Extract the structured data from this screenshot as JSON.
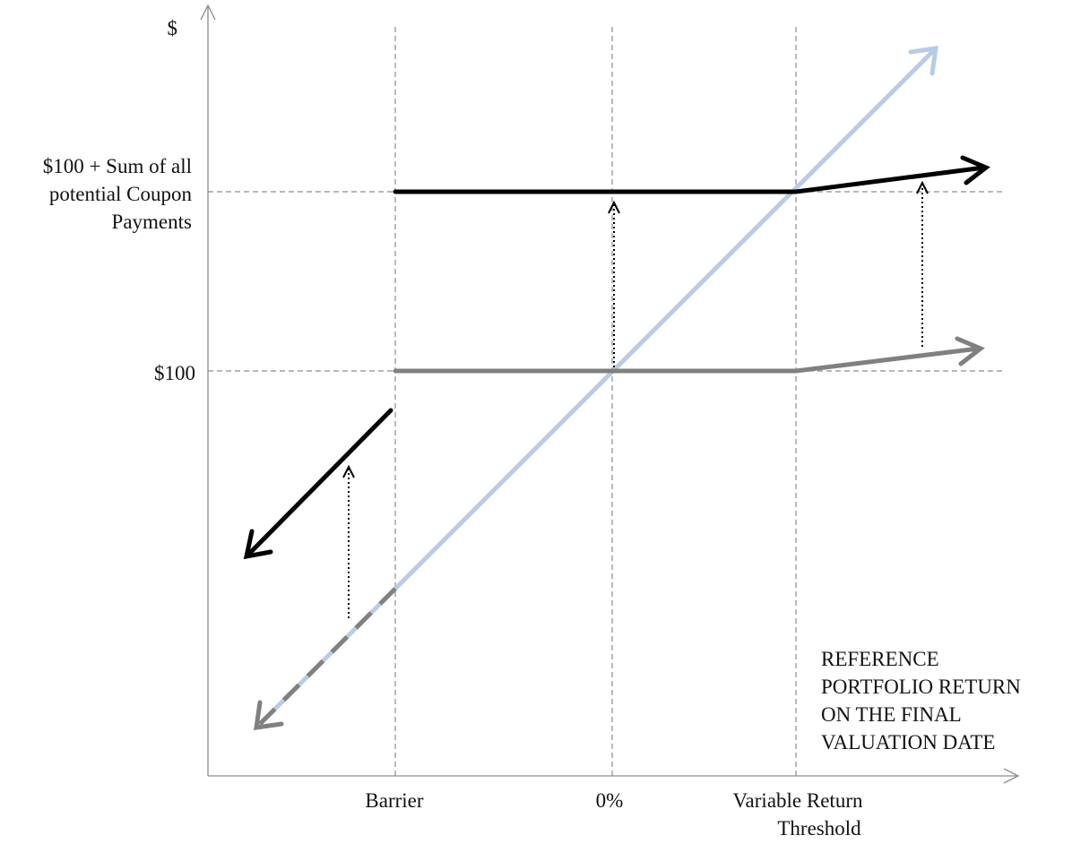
{
  "y_axis": {
    "unit_label": "$",
    "levels": [
      {
        "key": "principal_plus_coupons",
        "label_lines": [
          "$100 + Sum of all",
          "potential Coupon",
          "Payments"
        ]
      },
      {
        "key": "principal",
        "label_lines": [
          "$100"
        ]
      }
    ]
  },
  "x_axis": {
    "title_lines": [
      "REFERENCE",
      "PORTFOLIO RETURN",
      "ON THE FINAL",
      "VALUATION DATE"
    ],
    "markers": [
      {
        "key": "barrier",
        "label_lines": [
          "Barrier"
        ]
      },
      {
        "key": "zero",
        "label_lines": [
          "0%"
        ]
      },
      {
        "key": "threshold",
        "label_lines": [
          "Variable Return",
          "Threshold"
        ]
      }
    ]
  },
  "colors": {
    "axis": "#8c8c8c",
    "guide": "#8c8c8c",
    "portfolio_line": "#b8cce4",
    "note_payoff": "#000000",
    "principal_payoff": "#808080",
    "coupon_arrow": "#000000",
    "text": "#111111"
  }
}
